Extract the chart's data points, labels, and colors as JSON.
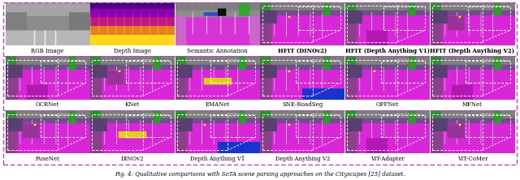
{
  "title": "Fig. 4: Qualitative comparisons with SoTA scene parsing approaches on the Cityscapes [25] dataset.",
  "border_color": "#bb44bb",
  "background_color": "#ffffff",
  "rows": [
    {
      "labels": [
        "RGB Image",
        "Depth Image",
        "Semantic Annotation",
        "HFIT (DINOv2)",
        "HFIT (Depth Anything V1)",
        "HFIT (Depth Anything V2)"
      ],
      "label_bold": [
        false,
        false,
        false,
        true,
        true,
        true
      ]
    },
    {
      "labels": [
        "OCRNet",
        "KNet",
        "EMANet",
        "SNE-RoadSeg",
        "OFFNet",
        "MFNet"
      ],
      "label_bold": [
        false,
        false,
        false,
        false,
        false,
        false
      ]
    },
    {
      "labels": [
        "FuseNet",
        "DINOv2",
        "Depth Anything V1",
        "Depth Anything V2",
        "ViT-Adapter",
        "ViT-CoMer"
      ],
      "label_bold": [
        false,
        false,
        false,
        false,
        false,
        false
      ]
    }
  ],
  "n_cols": 6,
  "n_rows": 3,
  "fig_width": 6.4,
  "fig_height": 2.22,
  "label_fontsize": 5.0,
  "caption_fontsize": 5.0
}
